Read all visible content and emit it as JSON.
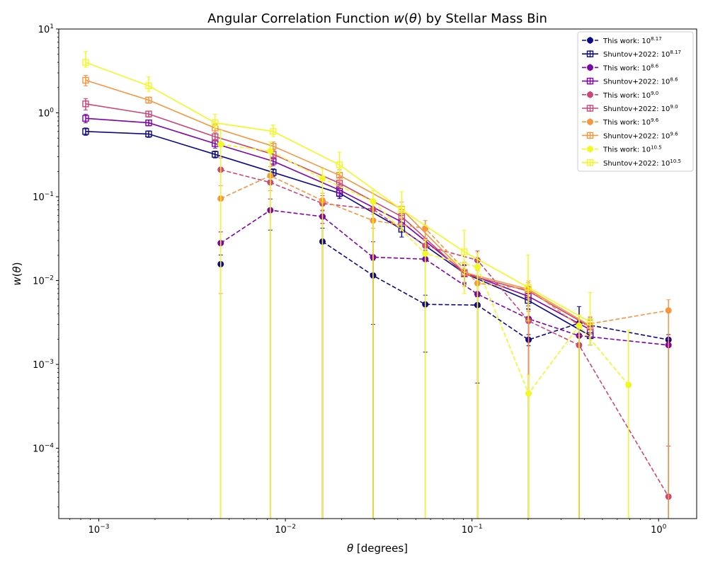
{
  "chart_data": {
    "type": "line",
    "title": "Angular Correlation Function w(θ) by Stellar Mass Bin",
    "xlabel": "θ [degrees]",
    "ylabel": "w(θ)",
    "xscale": "log",
    "yscale": "log",
    "xlim": [
      0.00061,
      1.6
    ],
    "ylim": [
      1.45e-05,
      10
    ],
    "x_tick_labels": [
      "10^-3",
      "10^-2",
      "10^-1",
      "10^0"
    ],
    "y_tick_labels": [
      "10^-4",
      "10^-3",
      "10^-2",
      "10^-1",
      "10^0",
      "10^1"
    ],
    "grid": false,
    "legend_position": "top-right",
    "series": [
      {
        "name": "This work: 10^8.17",
        "style": "dashed",
        "marker": "circle",
        "color": "#0d0887",
        "x": [
          0.0045,
          0.0083,
          0.0158,
          0.0295,
          0.0562,
          0.107,
          0.201,
          0.375,
          1.13
        ],
        "y": [
          0.0157,
          null,
          0.0292,
          0.0115,
          0.0052,
          0.0051,
          0.00197,
          0.0031,
          0.00197
        ],
        "err_up": [
          0.0045,
          0.02,
          0.013,
          0.006,
          0.0015,
          0.0013,
          0.0003,
          0.0018,
          0.0003
        ],
        "err_down": [
          0.0157,
          null,
          0.0292,
          0.0115,
          0.0038,
          0.0045,
          0.0003,
          0.0031,
          0.0001
        ]
      },
      {
        "name": "Shuntov+2022: 10^8.17",
        "style": "solid",
        "marker": "square",
        "color": "#0d0887",
        "x": [
          0.00085,
          0.00185,
          0.0042,
          0.0086,
          0.0195,
          0.042,
          0.091,
          0.2,
          0.43
        ],
        "y": [
          0.6,
          0.56,
          0.32,
          0.195,
          0.11,
          0.041,
          0.0122,
          0.0058,
          0.0022
        ],
        "err_up": [
          0.06,
          0.05,
          0.03,
          0.02,
          0.015,
          0.008,
          0.003,
          0.0012,
          0.0008
        ],
        "err_down": [
          0.06,
          0.05,
          0.03,
          0.02,
          0.015,
          0.008,
          0.003,
          0.0012,
          0.0005
        ]
      },
      {
        "name": "This work: 10^8.6",
        "style": "dashed",
        "marker": "circle",
        "color": "#7e03a8",
        "x": [
          0.0045,
          0.0083,
          0.0158,
          0.0295,
          0.0562,
          0.107,
          0.201,
          0.375,
          1.13
        ],
        "y": [
          0.028,
          0.069,
          0.058,
          0.019,
          0.018,
          0.0069,
          0.0035,
          0.0022,
          0.0017
        ],
        "err_up": [
          0.01,
          0.025,
          0.01,
          0.01,
          0.005,
          0.002,
          0.001,
          0.001,
          0.0003
        ],
        "err_down": [
          0.028,
          0.069,
          0.01,
          0.016,
          0.018,
          0.0069,
          0.0035,
          0.0022,
          0.0017
        ]
      },
      {
        "name": "Shuntov+2022: 10^8.6",
        "style": "solid",
        "marker": "square",
        "color": "#7e03a8",
        "x": [
          0.00085,
          0.00185,
          0.0042,
          0.0086,
          0.0195,
          0.042,
          0.091,
          0.2,
          0.43
        ],
        "y": [
          0.86,
          0.76,
          0.43,
          0.265,
          0.12,
          0.05,
          0.0125,
          0.0065,
          0.0026
        ],
        "err_up": [
          0.1,
          0.06,
          0.05,
          0.03,
          0.02,
          0.01,
          0.003,
          0.0015,
          0.0008
        ],
        "err_down": [
          0.1,
          0.06,
          0.05,
          0.03,
          0.02,
          0.01,
          0.003,
          0.0015,
          0.0005
        ]
      },
      {
        "name": "This work: 10^9.0",
        "style": "dashed",
        "marker": "circle",
        "color": "#cc4778",
        "x": [
          0.0045,
          0.0083,
          0.0158,
          0.0295,
          0.0562,
          0.107,
          0.201,
          0.375,
          1.13
        ],
        "y": [
          0.21,
          0.148,
          0.083,
          0.071,
          0.026,
          0.0175,
          0.0033,
          0.0017,
          2.65e-05
        ],
        "err_up": [
          0.08,
          0.04,
          0.02,
          0.015,
          0.006,
          0.005,
          0.001,
          0.0005,
          8e-05
        ],
        "err_down": [
          0.21,
          0.148,
          0.083,
          0.071,
          0.026,
          0.0175,
          0.0033,
          0.0017,
          2.65e-05
        ]
      },
      {
        "name": "Shuntov+2022: 10^9.0",
        "style": "solid",
        "marker": "square",
        "color": "#cc4778",
        "x": [
          0.00085,
          0.00185,
          0.0042,
          0.0086,
          0.0195,
          0.042,
          0.091,
          0.2,
          0.43
        ],
        "y": [
          1.28,
          0.97,
          0.52,
          0.32,
          0.145,
          0.058,
          0.012,
          0.0075,
          0.0028
        ],
        "err_up": [
          0.2,
          0.08,
          0.06,
          0.04,
          0.025,
          0.012,
          0.003,
          0.0015,
          0.0008
        ],
        "err_down": [
          0.2,
          0.08,
          0.06,
          0.04,
          0.025,
          0.012,
          0.003,
          0.0015,
          0.0005
        ]
      },
      {
        "name": "This work: 10^9.6",
        "style": "dashed",
        "marker": "circle",
        "color": "#f89540",
        "x": [
          0.0045,
          0.0083,
          0.0158,
          0.0295,
          0.0562,
          0.107,
          0.201,
          0.375,
          1.13
        ],
        "y": [
          0.095,
          0.178,
          0.09,
          0.052,
          0.042,
          0.0093,
          0.0079,
          0.0029,
          0.0044
        ],
        "err_up": [
          0.04,
          0.05,
          0.02,
          0.01,
          0.01,
          0.004,
          0.002,
          0.001,
          0.0015
        ],
        "err_down": [
          0.088,
          0.06,
          0.02,
          0.01,
          0.012,
          0.0093,
          0.0079,
          0.0029,
          0.0044
        ]
      },
      {
        "name": "Shuntov+2022: 10^9.6",
        "style": "solid",
        "marker": "square",
        "color": "#f89540",
        "x": [
          0.00085,
          0.00185,
          0.0042,
          0.0086,
          0.0195,
          0.042,
          0.091,
          0.2,
          0.43
        ],
        "y": [
          2.45,
          1.42,
          0.66,
          0.4,
          0.18,
          0.071,
          0.0125,
          0.0079,
          0.0029
        ],
        "err_up": [
          0.35,
          0.12,
          0.08,
          0.05,
          0.03,
          0.015,
          0.004,
          0.0015,
          0.0008
        ],
        "err_down": [
          0.35,
          0.12,
          0.08,
          0.05,
          0.03,
          0.015,
          0.004,
          0.0015,
          0.0005
        ]
      },
      {
        "name": "This work: 10^10.5",
        "style": "dashed",
        "marker": "circle",
        "color": "#f0f921",
        "x": [
          0.0045,
          0.0083,
          0.0158,
          0.0295,
          0.0562,
          0.107,
          0.201,
          0.375,
          0.69
        ],
        "y": [
          0.42,
          0.35,
          0.165,
          0.088,
          0.021,
          0.0145,
          0.00045,
          0.0029,
          0.00057
        ],
        "err_up": [
          0.2,
          0.1,
          0.05,
          0.03,
          0.01,
          0.007,
          0.0003,
          0.001,
          0.002
        ],
        "err_down": [
          0.42,
          0.35,
          0.165,
          0.088,
          0.021,
          0.0145,
          0.00045,
          0.0029,
          0.00057
        ]
      },
      {
        "name": "Shuntov+2022: 10^10.5",
        "style": "solid",
        "marker": "square",
        "color": "#f0f921",
        "x": [
          0.00085,
          0.00185,
          0.0042,
          0.0086,
          0.0195,
          0.042,
          0.091,
          0.2,
          0.43
        ],
        "y": [
          4.0,
          2.1,
          0.76,
          0.6,
          0.24,
          0.07,
          0.022,
          0.0083,
          0.0032
        ],
        "err_up": [
          1.4,
          0.6,
          0.2,
          0.12,
          0.1,
          0.045,
          0.018,
          0.012,
          0.004
        ],
        "err_down": [
          0.5,
          0.3,
          0.1,
          0.08,
          0.05,
          0.03,
          0.015,
          0.005,
          0.0015
        ]
      }
    ]
  },
  "legend_rows": [
    {
      "prefix": "This work: ",
      "base": "10",
      "exp": "8.17"
    },
    {
      "prefix": "Shuntov+2022: ",
      "base": "10",
      "exp": "8.17"
    },
    {
      "prefix": "This work: ",
      "base": "10",
      "exp": "8.6"
    },
    {
      "prefix": "Shuntov+2022: ",
      "base": "10",
      "exp": "8.6"
    },
    {
      "prefix": "This work: ",
      "base": "10",
      "exp": "9.0"
    },
    {
      "prefix": "Shuntov+2022: ",
      "base": "10",
      "exp": "9.0"
    },
    {
      "prefix": "This work: ",
      "base": "10",
      "exp": "9.6"
    },
    {
      "prefix": "Shuntov+2022: ",
      "base": "10",
      "exp": "9.6"
    },
    {
      "prefix": "This work: ",
      "base": "10",
      "exp": "10.5"
    },
    {
      "prefix": "Shuntov+2022: ",
      "base": "10",
      "exp": "10.5"
    }
  ],
  "x_ticks": [
    {
      "value": 0.001,
      "base": "10",
      "exp": "−3"
    },
    {
      "value": 0.01,
      "base": "10",
      "exp": "−2"
    },
    {
      "value": 0.1,
      "base": "10",
      "exp": "−1"
    },
    {
      "value": 1,
      "base": "10",
      "exp": "0"
    }
  ],
  "y_ticks": [
    {
      "value": 0.0001,
      "base": "10",
      "exp": "−4"
    },
    {
      "value": 0.001,
      "base": "10",
      "exp": "−3"
    },
    {
      "value": 0.01,
      "base": "10",
      "exp": "−2"
    },
    {
      "value": 0.1,
      "base": "10",
      "exp": "−1"
    },
    {
      "value": 1,
      "base": "10",
      "exp": "0"
    },
    {
      "value": 10,
      "base": "10",
      "exp": "1"
    }
  ]
}
